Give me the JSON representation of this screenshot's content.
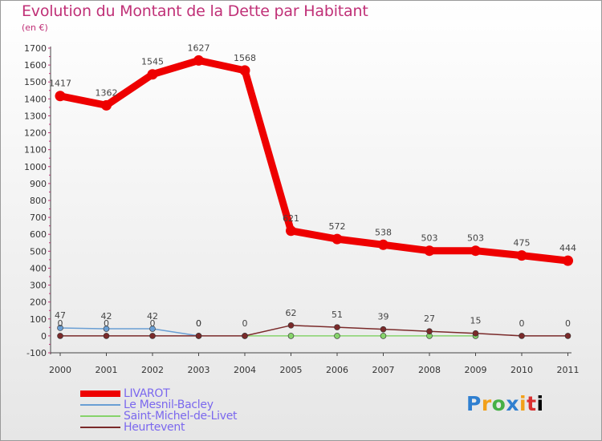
{
  "title": "Evolution du Montant de la Dette par Habitant",
  "subtitle": "(en €)",
  "logo": [
    "P",
    "r",
    "o",
    "x",
    "i",
    "t",
    "i"
  ],
  "chart_data": {
    "type": "line",
    "title": "Evolution du Montant de la Dette par Habitant",
    "subtitle": "(en €)",
    "x": [
      "2000",
      "2001",
      "2002",
      "2003",
      "2004",
      "2005",
      "2006",
      "2007",
      "2008",
      "2009",
      "2010",
      "2011"
    ],
    "ylim": [
      -100,
      1700
    ],
    "yticks": [
      -100,
      0,
      100,
      200,
      300,
      400,
      500,
      600,
      700,
      800,
      900,
      1000,
      1100,
      1200,
      1300,
      1400,
      1500,
      1600,
      1700
    ],
    "grid": false,
    "legend_position": "bottom-left",
    "series": [
      {
        "name": "LIVAROT",
        "color": "#ee0000",
        "values": [
          1417,
          1362,
          1545,
          1627,
          1568,
          621,
          572,
          538,
          503,
          503,
          475,
          444
        ],
        "labels": [
          "1417",
          "1362",
          "1545",
          "1627",
          "1568",
          "621",
          "572",
          "538",
          "503",
          "503",
          "475",
          "444"
        ]
      },
      {
        "name": "Le Mesnil-Bacley",
        "color": "#6a9fd4",
        "values": [
          47,
          42,
          42,
          0,
          null,
          null,
          null,
          null,
          null,
          null,
          null,
          null
        ],
        "labels": [
          "47",
          "42",
          "42",
          "0",
          "",
          "",
          "",
          "",
          "",
          "",
          "",
          ""
        ]
      },
      {
        "name": "Saint-Michel-de-Livet",
        "color": "#86d36b",
        "values": [
          null,
          null,
          null,
          null,
          0,
          0,
          0,
          0,
          0,
          0,
          null,
          null
        ],
        "labels": [
          "",
          "",
          "",
          "",
          "",
          "",
          "",
          "",
          "",
          "",
          "",
          ""
        ]
      },
      {
        "name": "Heurtevent",
        "color": "#7a2a2a",
        "values": [
          0,
          0,
          0,
          0,
          0,
          62,
          51,
          39,
          27,
          15,
          0,
          0
        ],
        "labels": [
          "0",
          "0",
          "0",
          "0",
          "0",
          "62",
          "51",
          "39",
          "27",
          "15",
          "0",
          "0"
        ]
      }
    ]
  }
}
